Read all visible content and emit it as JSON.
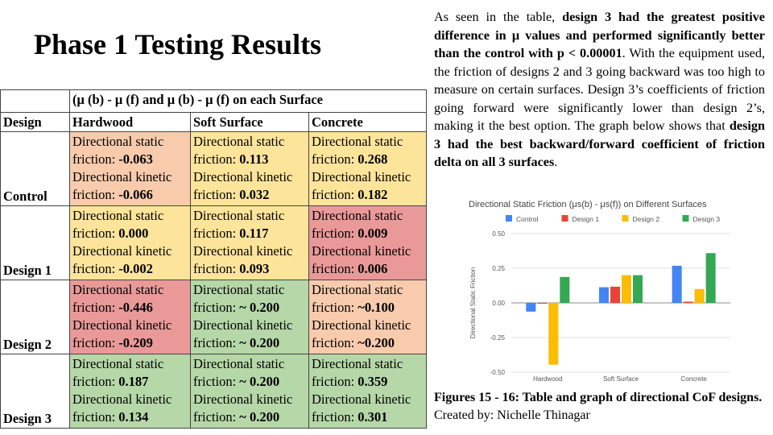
{
  "title": "Phase 1 Testing Results",
  "table": {
    "group_header": "(μ (b) - μ (f) and μ (b) - μ (f) on each Surface",
    "design_header": "Design",
    "columns": [
      "Hardwood",
      "Soft Surface",
      "Concrete"
    ],
    "static_label": "Directional static friction: ",
    "kinetic_label": "Directional kinetic friction: ",
    "rows": [
      {
        "design": "Control",
        "cells": [
          {
            "static": "-0.063",
            "kinetic": "-0.066",
            "color": "#f8cbad"
          },
          {
            "static": "0.113",
            "kinetic": "0.032",
            "color": "#fde49b"
          },
          {
            "static": "0.268",
            "kinetic": "0.182",
            "color": "#fde49b"
          }
        ]
      },
      {
        "design": "Design 1",
        "cells": [
          {
            "static": "0.000",
            "kinetic": "-0.002",
            "color": "#fde49b"
          },
          {
            "static": "0.117",
            "kinetic": "0.093",
            "color": "#fde49b"
          },
          {
            "static": "0.009",
            "kinetic": "0.006",
            "color": "#ea9999"
          }
        ]
      },
      {
        "design": "Design 2",
        "cells": [
          {
            "static": "-0.446",
            "kinetic": "-0.209",
            "color": "#ea9999"
          },
          {
            "static": "~ 0.200",
            "kinetic": "~ 0.200",
            "color": "#b6d7a8"
          },
          {
            "static": "~0.100",
            "kinetic": "~0.200",
            "color": "#f8cbad"
          }
        ]
      },
      {
        "design": "Design 3",
        "cells": [
          {
            "static": "0.187",
            "kinetic": "0.134",
            "color": "#b6d7a8"
          },
          {
            "static": "~ 0.200",
            "kinetic": "~ 0.200",
            "color": "#b6d7a8"
          },
          {
            "static": "0.359",
            "kinetic": "0.301",
            "color": "#b6d7a8"
          }
        ]
      }
    ]
  },
  "paragraph": {
    "p1": "As seen in the table, ",
    "b1": "design 3 had the greatest positive difference in μ values and performed significantly better than the control with p < 0.00001",
    "p2": ". With the equipment used, the friction of designs 2 and 3 going backward was too high to measure on certain surfaces. Design 3’s coefficients of friction going forward were significantly lower than design 2’s, making it the best option. The graph below shows that ",
    "b2": "design 3 had the best backward/forward coefficient of friction delta on all 3 surfaces",
    "p3": "."
  },
  "caption": {
    "bold": "Figures 15 - 16: Table and graph of directional CoF designs.",
    "normal": " Created by: Nichelle Thinagar"
  },
  "chart_data": {
    "type": "bar",
    "title": "Directional Static Friction (μs(b) - μs(f)) on Different Surfaces",
    "ylabel": "Directional Static Friction",
    "xlabel": "",
    "categories": [
      "Hardwood",
      "Soft Surface",
      "Concrete"
    ],
    "series": [
      {
        "name": "Control",
        "values": [
          -0.063,
          0.113,
          0.268
        ],
        "color": "#4285f4"
      },
      {
        "name": "Design 1",
        "values": [
          0.0,
          0.117,
          0.009
        ],
        "color": "#ea4335"
      },
      {
        "name": "Design 2",
        "values": [
          -0.446,
          0.2,
          0.1
        ],
        "color": "#fbbc04"
      },
      {
        "name": "Design 3",
        "values": [
          0.187,
          0.2,
          0.359
        ],
        "color": "#34a853"
      }
    ],
    "ylim": [
      -0.5,
      0.5
    ],
    "yticks": [
      "0.50",
      "0.25",
      "0.00",
      "-0.25",
      "-0.50"
    ],
    "grid": true,
    "legend": "top"
  }
}
